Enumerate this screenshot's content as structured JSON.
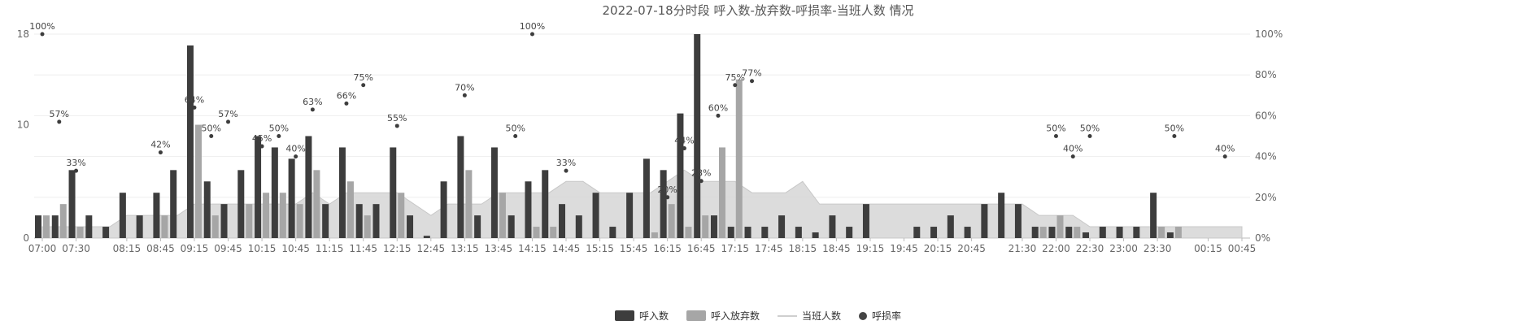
{
  "chart_data": {
    "type": "bar",
    "title": "2022-07-18分时段 呼入数-放弃数-呼损率-当班人数 情况",
    "x": [
      "07:00",
      "07:15",
      "07:30",
      "07:45",
      "08:00",
      "08:15",
      "08:30",
      "08:45",
      "09:00",
      "09:15",
      "09:30",
      "09:45",
      "10:00",
      "10:15",
      "10:30",
      "10:45",
      "11:00",
      "11:15",
      "11:30",
      "11:45",
      "12:00",
      "12:15",
      "12:30",
      "12:45",
      "13:00",
      "13:15",
      "13:30",
      "13:45",
      "14:00",
      "14:15",
      "14:30",
      "14:45",
      "15:00",
      "15:15",
      "15:30",
      "15:45",
      "16:00",
      "16:15",
      "16:30",
      "16:45",
      "17:00",
      "17:15",
      "17:30",
      "17:45",
      "18:00",
      "18:15",
      "18:30",
      "18:45",
      "19:00",
      "19:15",
      "19:30",
      "19:45",
      "20:00",
      "20:15",
      "20:30",
      "20:45",
      "21:00",
      "21:15",
      "21:30",
      "21:45",
      "22:00",
      "22:15",
      "22:30",
      "22:45",
      "23:00",
      "23:15",
      "23:30",
      "23:45",
      "00:00",
      "00:15",
      "00:30",
      "00:45"
    ],
    "x_tick_labels": [
      "07:00",
      "07:30",
      "08:15",
      "08:45",
      "09:15",
      "09:45",
      "10:15",
      "10:45",
      "11:15",
      "11:45",
      "12:15",
      "12:45",
      "13:15",
      "13:45",
      "14:15",
      "14:45",
      "15:15",
      "15:45",
      "16:15",
      "16:45",
      "17:15",
      "17:45",
      "18:15",
      "18:45",
      "19:15",
      "19:45",
      "20:15",
      "20:45",
      "21:30",
      "22:00",
      "22:30",
      "23:00",
      "23:30",
      "00:15",
      "00:45"
    ],
    "ylim_left": [
      0,
      18
    ],
    "yticks_left": [
      "0",
      "10",
      "18"
    ],
    "ylim_right": [
      0,
      100
    ],
    "yticks_right": [
      "0%",
      "20%",
      "40%",
      "60%",
      "80%",
      "100%"
    ],
    "grid": true,
    "legend_position": "bottom",
    "series": [
      {
        "name": "呼入数",
        "type": "bar",
        "color": "#3d3d3d",
        "values": [
          2,
          2,
          6,
          2,
          1,
          4,
          2,
          4,
          6,
          17,
          5,
          3,
          6,
          9,
          8,
          7,
          9,
          3,
          8,
          3,
          3,
          8,
          2,
          0.2,
          5,
          9,
          2,
          8,
          2,
          5,
          6,
          3,
          2,
          4,
          1,
          4,
          7,
          6,
          11,
          18,
          2,
          1,
          1,
          1,
          2,
          1,
          0.5,
          2,
          1,
          3,
          0,
          0,
          1,
          1,
          2,
          1,
          3,
          4,
          3,
          1,
          1,
          1,
          0.5,
          1,
          1,
          1,
          4,
          0.5,
          0,
          0,
          0,
          0
        ]
      },
      {
        "name": "呼入放弃数",
        "type": "bar",
        "color": "#a6a6a6",
        "values": [
          2,
          3,
          1,
          0,
          0,
          0,
          0,
          2,
          0,
          10,
          2,
          0,
          3,
          4,
          4,
          3,
          6,
          0,
          5,
          2,
          0,
          4,
          0,
          0,
          0,
          6,
          0,
          4,
          0,
          1,
          1,
          0,
          0,
          0,
          0,
          0,
          0.5,
          3,
          1,
          2,
          8,
          14,
          0,
          0,
          0,
          0,
          0,
          0,
          0,
          0,
          0,
          0,
          0,
          0,
          0,
          0,
          0,
          0,
          0,
          1,
          2,
          1,
          0,
          0,
          0,
          0,
          1,
          1,
          0,
          0,
          0,
          0
        ]
      },
      {
        "name": "当班人数",
        "type": "area",
        "color": "#d6d6d6",
        "values": [
          1,
          1,
          1,
          1,
          1,
          2,
          2,
          2,
          2,
          3,
          3,
          3,
          3,
          3,
          3,
          3,
          4,
          3,
          4,
          4,
          4,
          4,
          3,
          2,
          3,
          3,
          3,
          4,
          4,
          4,
          4,
          5,
          5,
          4,
          4,
          4,
          4,
          5,
          6,
          5,
          5,
          5,
          4,
          4,
          4,
          5,
          3,
          3,
          3,
          3,
          3,
          3,
          3,
          3,
          3,
          3,
          3,
          3,
          3,
          2,
          2,
          2,
          1,
          1,
          1,
          1,
          1,
          1,
          1,
          1,
          1,
          1
        ]
      },
      {
        "name": "呼损率",
        "type": "scatter",
        "color": "#3d3d3d",
        "points": [
          {
            "x": "07:00",
            "y": 100
          },
          {
            "x": "07:15",
            "y": 57
          },
          {
            "x": "07:30",
            "y": 33
          },
          {
            "x": "08:45",
            "y": 42
          },
          {
            "x": "09:15",
            "y": 64
          },
          {
            "x": "09:30",
            "y": 50
          },
          {
            "x": "09:45",
            "y": 57
          },
          {
            "x": "10:15",
            "y": 45
          },
          {
            "x": "10:30",
            "y": 50
          },
          {
            "x": "10:45",
            "y": 40
          },
          {
            "x": "11:00",
            "y": 63
          },
          {
            "x": "11:30",
            "y": 66
          },
          {
            "x": "11:45",
            "y": 75
          },
          {
            "x": "12:15",
            "y": 55
          },
          {
            "x": "13:15",
            "y": 70
          },
          {
            "x": "14:00",
            "y": 50
          },
          {
            "x": "14:15",
            "y": 100
          },
          {
            "x": "14:45",
            "y": 33
          },
          {
            "x": "16:15",
            "y": 20
          },
          {
            "x": "16:30",
            "y": 44
          },
          {
            "x": "16:45",
            "y": 28
          },
          {
            "x": "17:00",
            "y": 60
          },
          {
            "x": "17:15",
            "y": 75
          },
          {
            "x": "17:30",
            "y": 77
          },
          {
            "x": "22:00",
            "y": 50
          },
          {
            "x": "22:15",
            "y": 40
          },
          {
            "x": "22:30",
            "y": 50
          },
          {
            "x": "23:45",
            "y": 50
          },
          {
            "x": "00:30",
            "y": 40
          }
        ]
      }
    ]
  }
}
